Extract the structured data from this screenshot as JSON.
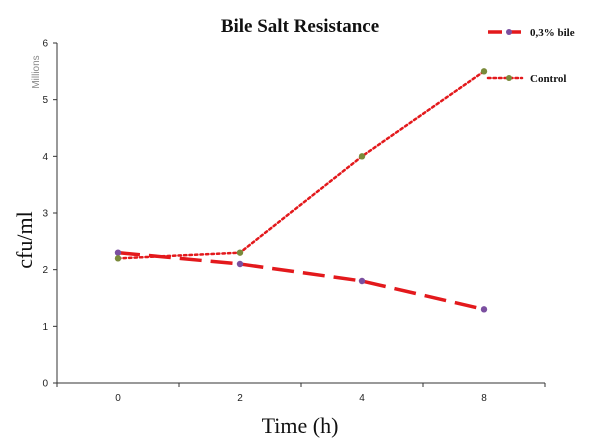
{
  "chart_data": {
    "type": "line",
    "title": "Bile Salt Resistance",
    "xlabel": "Time (h)",
    "ylabel": "cfu/ml",
    "y_unit_label": "Millions",
    "categories": [
      "0",
      "2",
      "4",
      "8"
    ],
    "ylim": [
      0,
      6
    ],
    "yticks": [
      "0",
      "1",
      "2",
      "3",
      "4",
      "5",
      "6"
    ],
    "grid": false,
    "legend_position": "top-right",
    "series": [
      {
        "name": "0,3% bile",
        "values": [
          2.3,
          2.1,
          1.8,
          1.3
        ],
        "color": "#e3191c",
        "marker_color": "#7b4fa0",
        "style": "dashed"
      },
      {
        "name": "Control",
        "values": [
          2.2,
          2.3,
          4.0,
          5.5
        ],
        "color": "#e3191c",
        "marker_color": "#7a8a3a",
        "style": "dotted"
      }
    ]
  }
}
